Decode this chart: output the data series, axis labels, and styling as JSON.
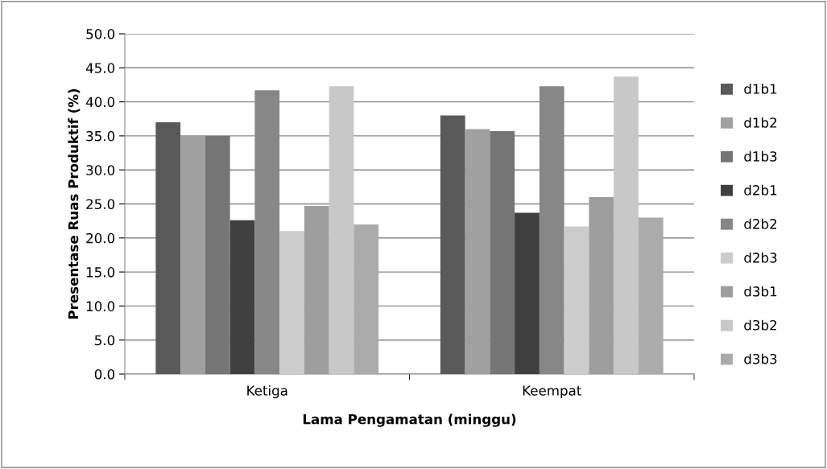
{
  "chart_data": {
    "type": "bar",
    "xlabel": "Lama Pengamatan (minggu)",
    "ylabel": "Presentase Ruas Produktif (%)",
    "categories": [
      "Ketiga",
      "Keempat"
    ],
    "series": [
      {
        "name": "d1b1",
        "color": "#595959",
        "values": [
          37.0,
          38.0
        ]
      },
      {
        "name": "d1b2",
        "color": "#a0a0a0",
        "values": [
          35.0,
          36.0
        ]
      },
      {
        "name": "d1b3",
        "color": "#757575",
        "values": [
          35.0,
          35.7
        ]
      },
      {
        "name": "d2b1",
        "color": "#404040",
        "values": [
          22.6,
          23.7
        ]
      },
      {
        "name": "d2b2",
        "color": "#878787",
        "values": [
          41.7,
          42.3
        ]
      },
      {
        "name": "d2b3",
        "color": "#cccccc",
        "values": [
          21.0,
          21.7
        ]
      },
      {
        "name": "d3b1",
        "color": "#9e9e9e",
        "values": [
          24.7,
          26.0
        ]
      },
      {
        "name": "d3b2",
        "color": "#c8c8c8",
        "values": [
          42.3,
          43.7
        ]
      },
      {
        "name": "d3b3",
        "color": "#ababab",
        "values": [
          22.0,
          23.0
        ]
      }
    ],
    "ylim": [
      0,
      50
    ],
    "yticks": [
      {
        "value": 0,
        "label": "0.0"
      },
      {
        "value": 5,
        "label": "5.0"
      },
      {
        "value": 10,
        "label": "10.0"
      },
      {
        "value": 15,
        "label": "15.0"
      },
      {
        "value": 20,
        "label": "20.0"
      },
      {
        "value": 25,
        "label": "25.0"
      },
      {
        "value": 30,
        "label": "30.0"
      },
      {
        "value": 35,
        "label": "35.0"
      },
      {
        "value": 40,
        "label": "40.0"
      },
      {
        "value": 45,
        "label": "45.0"
      },
      {
        "value": 50,
        "label": "50.0"
      }
    ],
    "grid": "y",
    "legend": "right"
  }
}
